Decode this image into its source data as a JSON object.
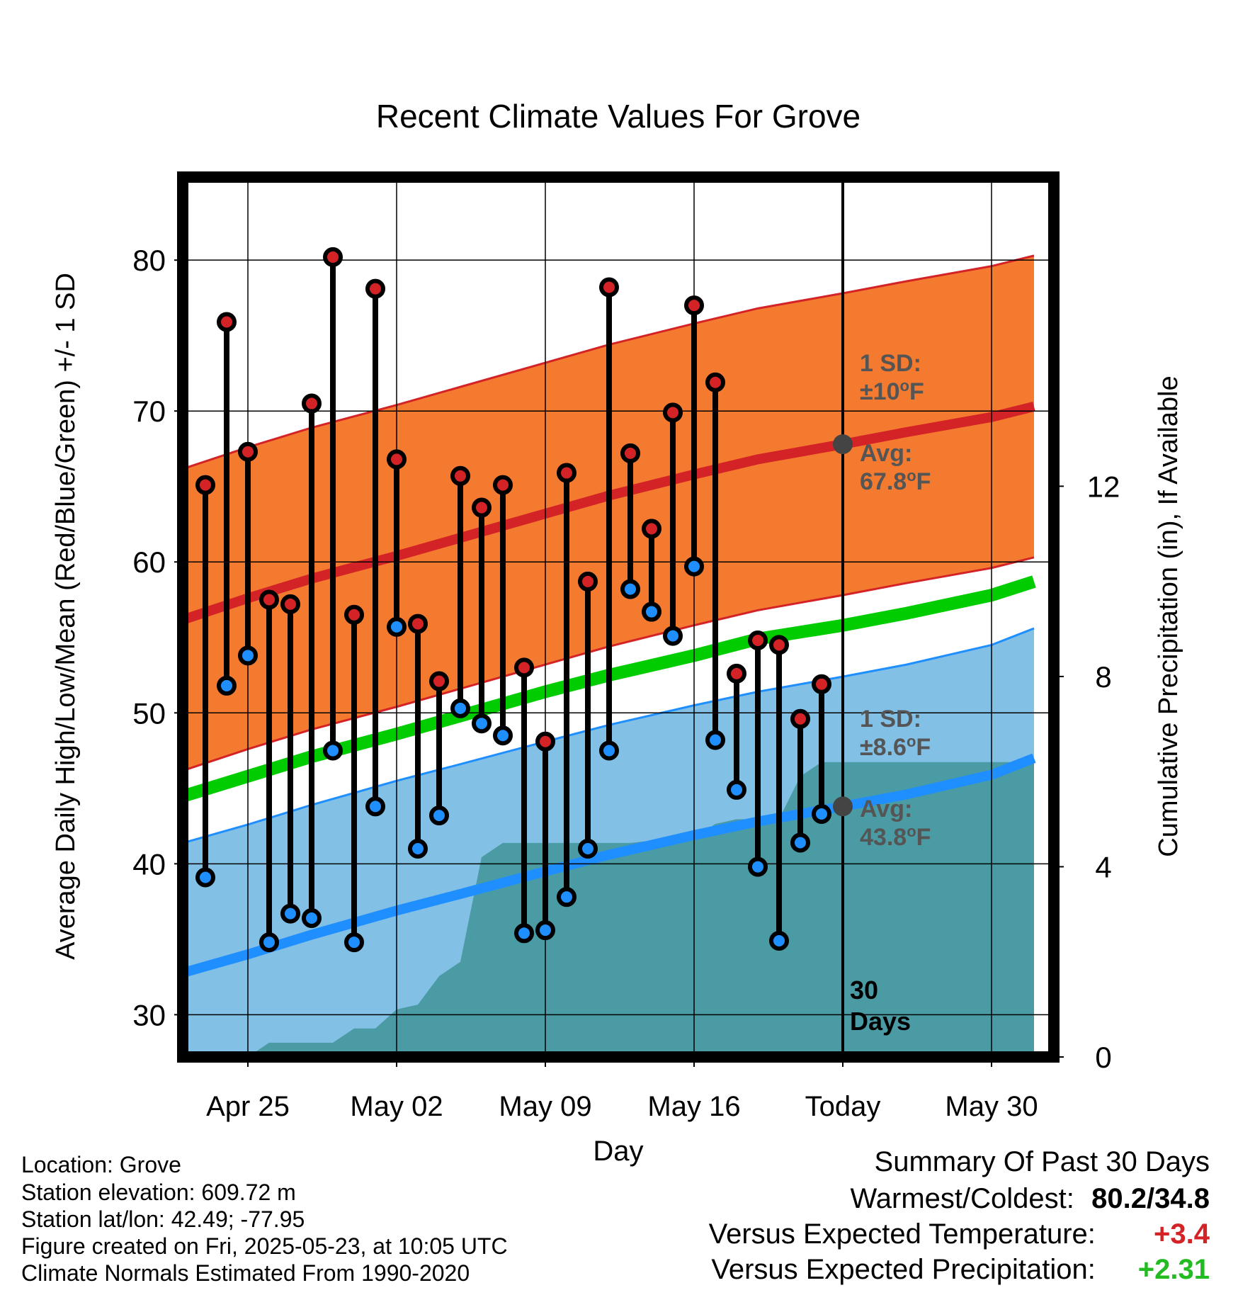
{
  "chart_data": {
    "type": "line",
    "title": "Recent Climate Values For Grove",
    "xlabel": "Day",
    "ylabel": "Average Daily High/Low/Mean (Red/Blue/Green) +/- 1 SD",
    "y2label": "Cumulative Precipitation (in), If Available",
    "ylim": [
      27.2,
      85.5
    ],
    "y2lim": [
      0,
      18.5
    ],
    "yticks": [
      30,
      40,
      50,
      60,
      70,
      80
    ],
    "y2ticks": [
      0,
      4,
      8,
      12
    ],
    "xlim": [
      -3.3,
      37.2
    ],
    "grid": true,
    "x_tick_positions": [
      0,
      7,
      14,
      21,
      28,
      35
    ],
    "x_tick_labels": [
      "Apr 25",
      "May 02",
      "May 09",
      "May 16",
      "Today",
      "May 30"
    ],
    "today_day": 28,
    "today_label": "30\nDays",
    "days": [
      -2,
      -1,
      0,
      1,
      2,
      3,
      4,
      5,
      6,
      7,
      8,
      9,
      10,
      11,
      12,
      13,
      14,
      15,
      16,
      17,
      18,
      19,
      20,
      21,
      22,
      23,
      24,
      25,
      26,
      27
    ],
    "highs": [
      65.1,
      75.9,
      67.3,
      57.5,
      57.2,
      70.5,
      80.2,
      56.5,
      78.1,
      66.8,
      55.9,
      52.1,
      65.7,
      63.6,
      65.1,
      53.0,
      48.1,
      65.9,
      58.7,
      78.2,
      67.2,
      62.2,
      69.9,
      77.0,
      71.9,
      52.6,
      54.8,
      54.5,
      49.6,
      51.9
    ],
    "lows": [
      39.1,
      51.8,
      53.8,
      34.8,
      36.7,
      36.4,
      47.5,
      34.8,
      43.8,
      55.7,
      41.0,
      43.2,
      50.3,
      49.3,
      48.5,
      35.4,
      35.6,
      37.8,
      41.0,
      47.5,
      58.2,
      56.7,
      55.1,
      59.7,
      48.2,
      44.9,
      39.8,
      34.9,
      41.4,
      43.3
    ],
    "normal_day": [
      -3,
      0,
      3,
      7,
      10,
      14,
      17,
      21,
      24,
      28,
      31,
      35,
      37
    ],
    "normal_high": [
      56.2,
      57.6,
      58.9,
      60.4,
      61.6,
      63.2,
      64.4,
      65.8,
      66.8,
      67.8,
      68.6,
      69.6,
      70.3
    ],
    "normal_low": [
      32.8,
      34.0,
      35.3,
      36.9,
      38.0,
      39.5,
      40.6,
      41.9,
      42.8,
      43.8,
      44.6,
      45.9,
      47.0
    ],
    "normal_mean": [
      44.5,
      45.8,
      47.1,
      48.6,
      49.8,
      51.4,
      52.5,
      53.8,
      54.9,
      55.8,
      56.6,
      57.8,
      58.7
    ],
    "high_sd": 10.0,
    "low_sd": 8.6,
    "precip_day": [
      -3,
      -1,
      0,
      1,
      2,
      3,
      4,
      5,
      6,
      7,
      8,
      9,
      10,
      11,
      12,
      13,
      14,
      15,
      16,
      17,
      18,
      19,
      20,
      21,
      22,
      23,
      24,
      25,
      26,
      27,
      28,
      37
    ],
    "precip_cum": [
      0,
      0,
      0,
      0.3,
      0.3,
      0.3,
      0.3,
      0.6,
      0.6,
      1.0,
      1.1,
      1.7,
      2.0,
      4.2,
      4.5,
      4.5,
      4.5,
      4.5,
      4.5,
      4.5,
      4.5,
      4.55,
      4.55,
      4.6,
      4.9,
      5.0,
      5.0,
      5.0,
      5.9,
      6.2,
      6.2,
      6.2
    ],
    "annotations": {
      "high_sd_label": "1 SD:",
      "high_sd_value": "±10",
      "high_avg_label": "Avg:",
      "high_avg_value": "67.8",
      "low_sd_label": "1 SD:",
      "low_sd_value": "±8.6",
      "low_avg_label": "Avg:",
      "low_avg_value": "43.8",
      "degree_sign": "o",
      "unit": "F"
    },
    "colors": {
      "high_band": "#f47a30",
      "high_line": "#d42326",
      "low_band": "#82c0e6",
      "low_line": "#1f8fff",
      "mean_line": "#00cc00",
      "precip": "#4a9ba4",
      "high_dot": "#d42326",
      "low_dot": "#1f8fff",
      "avg_marker": "#444444"
    }
  },
  "meta": {
    "location": "Location: Grove",
    "elevation": "Station elevation: 609.72 m",
    "latlon": "Station lat/lon: 42.49; -77.95",
    "created": "Figure created on Fri, 2025-05-23, at 10:05 UTC",
    "normals": "Climate Normals Estimated From 1990-2020"
  },
  "summary": {
    "title": "Summary Of Past 30 Days",
    "warm_cold_label": "Warmest/Coldest:",
    "warm_cold_value": "80.2/34.8",
    "temp_label": "Versus Expected Temperature:",
    "temp_value": "+3.4",
    "temp_color": "#d42326",
    "precip_label": "Versus Expected Precipitation:",
    "precip_value": "+2.31",
    "precip_color": "#22bb22"
  }
}
